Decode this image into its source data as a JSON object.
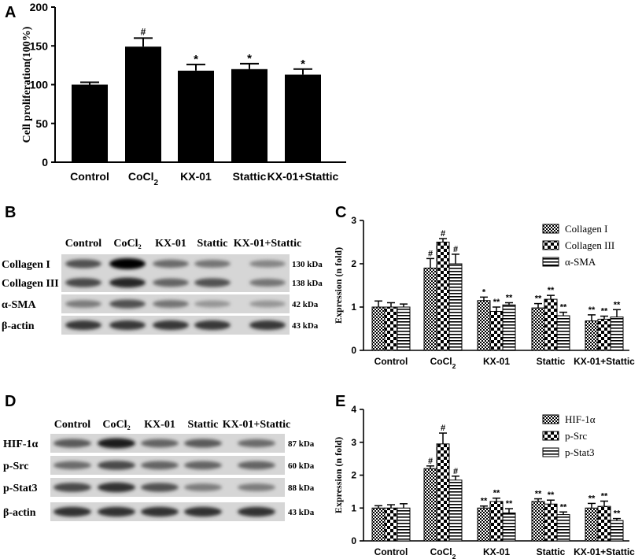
{
  "panels": {
    "A": {
      "letter": "A"
    },
    "B": {
      "letter": "B"
    },
    "C": {
      "letter": "C"
    },
    "D": {
      "letter": "D"
    },
    "E": {
      "letter": "E"
    }
  },
  "blot_B": {
    "lane_labels": [
      "Control",
      "CoCl₂",
      "KX-01",
      "Stattic",
      "KX-01+Stattic"
    ],
    "rows": [
      {
        "protein": "Collagen I",
        "size": "130 kDa",
        "intensity": [
          0.55,
          1.0,
          0.4,
          0.35,
          0.25
        ]
      },
      {
        "protein": "Collagen III",
        "size": "138 kDa",
        "intensity": [
          0.6,
          0.8,
          0.45,
          0.55,
          0.35
        ]
      },
      {
        "protein": "α-SMA",
        "size": "42 kDa",
        "intensity": [
          0.3,
          0.55,
          0.35,
          0.15,
          0.15
        ]
      },
      {
        "protein": "β-actin",
        "size": "43 kDa",
        "intensity": [
          0.7,
          0.7,
          0.7,
          0.7,
          0.7
        ]
      }
    ]
  },
  "blot_D": {
    "lane_labels": [
      "Control",
      "CoCl₂",
      "KX-01",
      "Stattic",
      "KX-01+Stattic"
    ],
    "rows": [
      {
        "protein": "HIF-1α",
        "size": "87 kDa",
        "intensity": [
          0.5,
          0.85,
          0.45,
          0.5,
          0.4
        ]
      },
      {
        "protein": "p-Src",
        "size": "60 kDa",
        "intensity": [
          0.4,
          0.6,
          0.45,
          0.45,
          0.45
        ]
      },
      {
        "protein": "p-Stat3",
        "size": "88 kDa",
        "intensity": [
          0.6,
          0.75,
          0.55,
          0.3,
          0.3
        ]
      },
      {
        "protein": "β-actin",
        "size": "43 kDa",
        "intensity": [
          0.75,
          0.75,
          0.75,
          0.75,
          0.75
        ]
      }
    ]
  },
  "chart_data": [
    {
      "id": "A",
      "type": "bar",
      "categories": [
        "Control",
        "CoCl2",
        "KX-01",
        "Stattic",
        "KX-01+Stattic"
      ],
      "values": [
        100,
        149,
        118,
        120,
        113
      ],
      "errors": [
        3,
        11,
        8,
        7,
        7
      ],
      "annotations": [
        "",
        "#",
        "*",
        "*",
        "*"
      ],
      "ylabel": "Cell proliferation(100%)",
      "xlabel": "",
      "ylim": [
        0,
        200
      ],
      "yticks": [
        0,
        50,
        100,
        150,
        200
      ],
      "bar_color": "#000000"
    },
    {
      "id": "C",
      "type": "bar",
      "categories": [
        "Control",
        "CoCl2",
        "KX-01",
        "Stattic",
        "KX-01+Stattic"
      ],
      "ylabel": "Expression (n fold)",
      "xlabel": "",
      "ylim": [
        0,
        3
      ],
      "yticks": [
        0,
        1,
        2,
        3
      ],
      "legend_position": "top-right",
      "series": [
        {
          "name": "Collagen I",
          "pattern": "checker-fine",
          "values": [
            1.0,
            1.9,
            1.15,
            0.98,
            0.68
          ],
          "errors": [
            0.14,
            0.22,
            0.08,
            0.1,
            0.14
          ],
          "annotations": [
            "",
            "#",
            "*",
            "**",
            "**"
          ]
        },
        {
          "name": "Collagen III",
          "pattern": "checker-large",
          "values": [
            1.0,
            2.5,
            0.9,
            1.18,
            0.72
          ],
          "errors": [
            0.1,
            0.08,
            0.1,
            0.09,
            0.07
          ],
          "annotations": [
            "",
            "#",
            "**",
            "**",
            "**"
          ]
        },
        {
          "name": "α-SMA",
          "pattern": "hlines",
          "values": [
            1.0,
            2.0,
            1.05,
            0.8,
            0.77
          ],
          "errors": [
            0.07,
            0.22,
            0.05,
            0.08,
            0.17
          ],
          "annotations": [
            "",
            "#",
            "**",
            "**",
            "**"
          ]
        }
      ]
    },
    {
      "id": "E",
      "type": "bar",
      "categories": [
        "Control",
        "CoCl2",
        "KX-01",
        "Stattic",
        "KX-01+Stattic"
      ],
      "ylabel": "Expression (n fold)",
      "xlabel": "",
      "ylim": [
        0,
        4
      ],
      "yticks": [
        0,
        1,
        2,
        3,
        4
      ],
      "legend_position": "top-right",
      "series": [
        {
          "name": "HIF-1α",
          "pattern": "checker-fine",
          "values": [
            1.0,
            2.2,
            1.0,
            1.2,
            1.0
          ],
          "errors": [
            0.07,
            0.08,
            0.06,
            0.08,
            0.14
          ],
          "annotations": [
            "",
            "#",
            "**",
            "**",
            "**"
          ]
        },
        {
          "name": "p-Src",
          "pattern": "checker-large",
          "values": [
            1.0,
            2.95,
            1.2,
            1.12,
            1.05
          ],
          "errors": [
            0.1,
            0.33,
            0.1,
            0.12,
            0.16
          ],
          "annotations": [
            "",
            "#",
            "**",
            "**",
            "**"
          ]
        },
        {
          "name": "p-Stat3",
          "pattern": "hlines",
          "values": [
            1.0,
            1.85,
            0.85,
            0.8,
            0.62
          ],
          "errors": [
            0.13,
            0.12,
            0.13,
            0.08,
            0.06
          ],
          "annotations": [
            "",
            "#",
            "**",
            "**",
            "**"
          ]
        }
      ]
    }
  ]
}
